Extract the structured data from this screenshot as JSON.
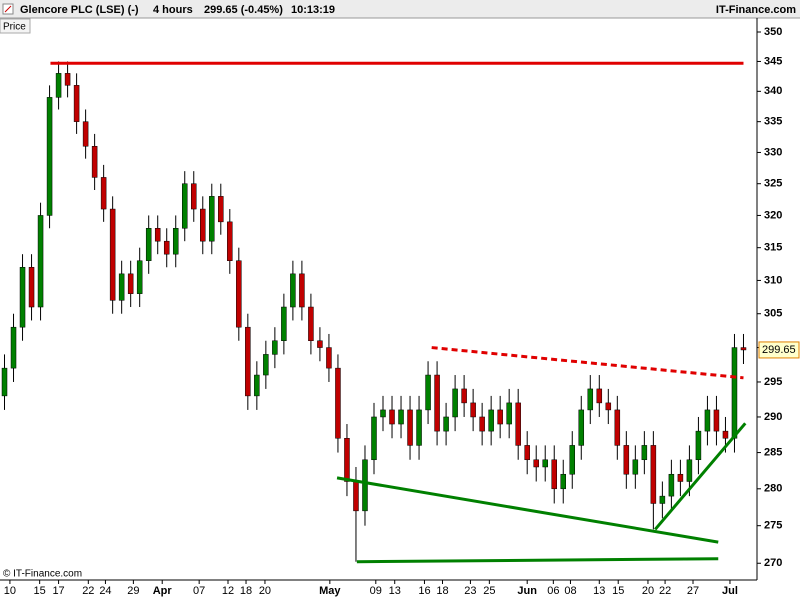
{
  "chart_data": {
    "type": "candlestick",
    "title": "Glencore PLC (LSE) (-)",
    "interval": "4 hours",
    "quote": "299.65 (-0.45%)",
    "time": "10:13:19",
    "brand": "IT-Finance.com",
    "y_label": "Price",
    "copyright": "© IT-Finance.com",
    "last_label": "299.65",
    "log_scale": true,
    "up_color": "#008000",
    "down_color": "#c00000",
    "wick_color": "#000000",
    "open": [
      293,
      297,
      303,
      312,
      306,
      320,
      339,
      343,
      341,
      335,
      331,
      326,
      321,
      307,
      311,
      308,
      313,
      318,
      316,
      314,
      318,
      325,
      321,
      316,
      323,
      319,
      313,
      303,
      293,
      296,
      299,
      301,
      306,
      311,
      306,
      301,
      300,
      297,
      287,
      281,
      277,
      284,
      290,
      291,
      289,
      291,
      286,
      291,
      296,
      288,
      290,
      294,
      292,
      290,
      288,
      291,
      289,
      292,
      286,
      284,
      283,
      284,
      280,
      282,
      286,
      291,
      294,
      292,
      291,
      286,
      282,
      284,
      286,
      278,
      279,
      282,
      281,
      284,
      288,
      291,
      288,
      287,
      300
    ],
    "high": [
      299,
      305,
      314,
      314,
      322,
      341,
      345,
      345,
      343,
      337,
      333,
      328,
      323,
      313,
      313,
      315,
      320,
      320,
      318,
      320,
      327,
      327,
      323,
      325,
      325,
      321,
      315,
      305,
      298,
      301,
      303,
      308,
      313,
      313,
      308,
      303,
      302,
      299,
      289,
      283,
      286,
      292,
      293,
      293,
      293,
      293,
      293,
      298,
      298,
      292,
      296,
      296,
      294,
      292,
      293,
      293,
      294,
      294,
      288,
      286,
      286,
      286,
      284,
      288,
      293,
      296,
      296,
      294,
      293,
      288,
      286,
      288,
      288,
      281,
      284,
      284,
      286,
      290,
      293,
      293,
      290,
      302,
      302
    ],
    "low": [
      291,
      295,
      301,
      304,
      304,
      318,
      337,
      339,
      333,
      329,
      324,
      319,
      305,
      305,
      306,
      306,
      311,
      314,
      312,
      312,
      316,
      319,
      314,
      314,
      317,
      311,
      301,
      291,
      291,
      294,
      297,
      299,
      304,
      304,
      299,
      298,
      295,
      285,
      279,
      270.2,
      275,
      282,
      288,
      287,
      287,
      284,
      284,
      289,
      286,
      286,
      288,
      290,
      288,
      286,
      286,
      287,
      287,
      284,
      282,
      281,
      281,
      278,
      278,
      280,
      284,
      289,
      290,
      289,
      284,
      280,
      280,
      282,
      274.5,
      276,
      277,
      279,
      279,
      282,
      286,
      286,
      285,
      285,
      297.6
    ],
    "close": [
      297,
      303,
      312,
      306,
      320,
      339,
      343,
      341,
      335,
      331,
      326,
      321,
      307,
      311,
      308,
      313,
      318,
      316,
      314,
      318,
      325,
      321,
      316,
      323,
      319,
      313,
      303,
      293,
      296,
      299,
      301,
      306,
      311,
      306,
      301,
      300,
      297,
      287,
      281,
      277,
      284,
      290,
      291,
      289,
      291,
      286,
      291,
      296,
      288,
      290,
      294,
      292,
      290,
      288,
      291,
      289,
      292,
      286,
      284,
      283,
      284,
      280,
      282,
      286,
      291,
      294,
      292,
      291,
      286,
      282,
      284,
      286,
      278,
      279,
      282,
      281,
      284,
      288,
      291,
      288,
      287,
      300,
      299.65
    ],
    "xlim": [
      -0.5,
      83.5
    ],
    "ylim": [
      267.8,
      352.4
    ],
    "yticks": [
      270,
      275,
      280,
      285,
      290,
      295,
      300,
      305,
      310,
      315,
      320,
      325,
      330,
      335,
      340,
      345,
      350
    ],
    "xticks": [
      {
        "value": 0.6,
        "label": "10"
      },
      {
        "value": 3.9,
        "label": "15"
      },
      {
        "value": 6,
        "label": "17"
      },
      {
        "value": 9.3,
        "label": "22"
      },
      {
        "value": 11.2,
        "label": "24"
      },
      {
        "value": 14.3,
        "label": "29"
      },
      {
        "value": 17.5,
        "label": "Apr"
      },
      {
        "value": 21.6,
        "label": "07"
      },
      {
        "value": 24.8,
        "label": "12"
      },
      {
        "value": 26.8,
        "label": "18"
      },
      {
        "value": 28.9,
        "label": "20"
      },
      {
        "value": 36.1,
        "label": "May"
      },
      {
        "value": 41.2,
        "label": "09"
      },
      {
        "value": 43.3,
        "label": "13"
      },
      {
        "value": 46.6,
        "label": "16"
      },
      {
        "value": 48.6,
        "label": "18"
      },
      {
        "value": 51.7,
        "label": "23"
      },
      {
        "value": 53.8,
        "label": "25"
      },
      {
        "value": 58,
        "label": "Jun"
      },
      {
        "value": 60.9,
        "label": "06"
      },
      {
        "value": 62.8,
        "label": "08"
      },
      {
        "value": 66,
        "label": "13"
      },
      {
        "value": 68.1,
        "label": "15"
      },
      {
        "value": 71.4,
        "label": "20"
      },
      {
        "value": 73.3,
        "label": "22"
      },
      {
        "value": 76.4,
        "label": "27"
      },
      {
        "value": 80.5,
        "label": "Jul"
      }
    ],
    "trendlines": [
      {
        "color": "#e00000",
        "style": "solid",
        "x": [
          5.1,
          82
        ],
        "y": [
          344.7,
          344.7
        ]
      },
      {
        "color": "#e00000",
        "style": "dashed",
        "x": [
          47.4,
          82
        ],
        "y": [
          300,
          295.6
        ]
      },
      {
        "color": "#008000",
        "style": "solid",
        "x": [
          36.9,
          79.2
        ],
        "y": [
          281.5,
          272.8
        ]
      },
      {
        "color": "#008000",
        "style": "solid",
        "x": [
          39.1,
          79.2
        ],
        "y": [
          270.2,
          270.6
        ]
      },
      {
        "color": "#008000",
        "style": "solid",
        "x": [
          72.2,
          82.2
        ],
        "y": [
          274.5,
          289.1
        ]
      }
    ]
  }
}
